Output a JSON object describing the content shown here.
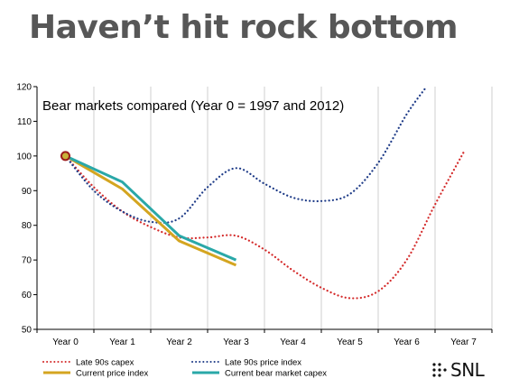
{
  "slide": {
    "title": "Haven’t hit rock bottom"
  },
  "chart_data": {
    "type": "line",
    "title": "Bear markets compared (Year 0 = 1997 and 2012)",
    "xlabel": "",
    "ylabel": "",
    "categories": [
      "Year 0",
      "Year 1",
      "Year 2",
      "Year 3",
      "Year 4",
      "Year 5",
      "Year 6",
      "Year 7"
    ],
    "x_range": [
      0,
      7
    ],
    "ylim": [
      50,
      120
    ],
    "yticks": [
      50,
      60,
      70,
      80,
      90,
      100,
      110,
      120
    ],
    "grid": "vertical",
    "legend_position": "bottom",
    "series": [
      {
        "name": "Late 90s capex",
        "color": "#d42b2b",
        "style": "dotted",
        "x": [
          0,
          0.5,
          1,
          1.5,
          2,
          2.5,
          3,
          3.5,
          4,
          4.5,
          5,
          5.5,
          6,
          6.5,
          7
        ],
        "y": [
          100,
          91,
          84,
          79.5,
          76.5,
          76.5,
          77,
          73,
          67,
          62,
          59,
          61,
          70,
          86,
          101
        ]
      },
      {
        "name": "Late 90s price index",
        "color": "#1f3c88",
        "style": "dotted",
        "x": [
          0,
          0.5,
          1,
          1.5,
          2,
          2.5,
          3,
          3.5,
          4,
          4.5,
          5,
          5.5,
          6,
          6.35
        ],
        "y": [
          100,
          90,
          84,
          81,
          82,
          91,
          96.5,
          92,
          88,
          87,
          89,
          98,
          112,
          120
        ]
      },
      {
        "name": "Current price index",
        "color": "#d4a520",
        "style": "solid",
        "x": [
          0,
          1,
          2,
          3
        ],
        "y": [
          100,
          90.5,
          75.5,
          68.5
        ]
      },
      {
        "name": "Current bear market capex",
        "color": "#2aa8a8",
        "style": "solid",
        "x": [
          0,
          1,
          2,
          3
        ],
        "y": [
          100,
          92.5,
          77,
          70
        ]
      }
    ],
    "marker": {
      "x": 0,
      "y": 100,
      "fill": "#c9b23a",
      "stroke": "#9b1b1b"
    }
  },
  "logo": {
    "text": "SNL"
  }
}
